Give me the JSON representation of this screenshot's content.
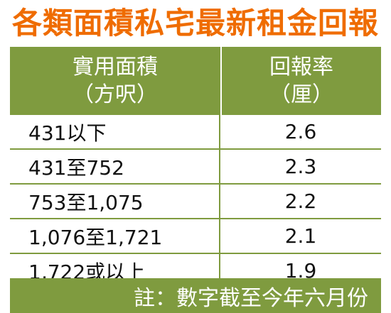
{
  "chart_data": {
    "type": "table",
    "title": "各類面積私宅最新租金回報",
    "columns": [
      {
        "line1": "實用面積",
        "line2": "（方呎）"
      },
      {
        "line1": "回報率",
        "line2": "（厘）"
      }
    ],
    "rows": [
      {
        "area": "431以下",
        "yield": "2.6"
      },
      {
        "area": "431至752",
        "yield": "2.3"
      },
      {
        "area": "753至1,075",
        "yield": "2.2"
      },
      {
        "area": "1,076至1,721",
        "yield": "2.1"
      },
      {
        "area": "1,722或以上",
        "yield": "1.9"
      }
    ],
    "note": "註：數字截至今年六月份"
  },
  "colors": {
    "title": "#ef6c00",
    "header_bg": "#7f9b3f",
    "header_text": "#ffffff",
    "grid": "#7f9b3f",
    "cell_text": "#111111"
  }
}
